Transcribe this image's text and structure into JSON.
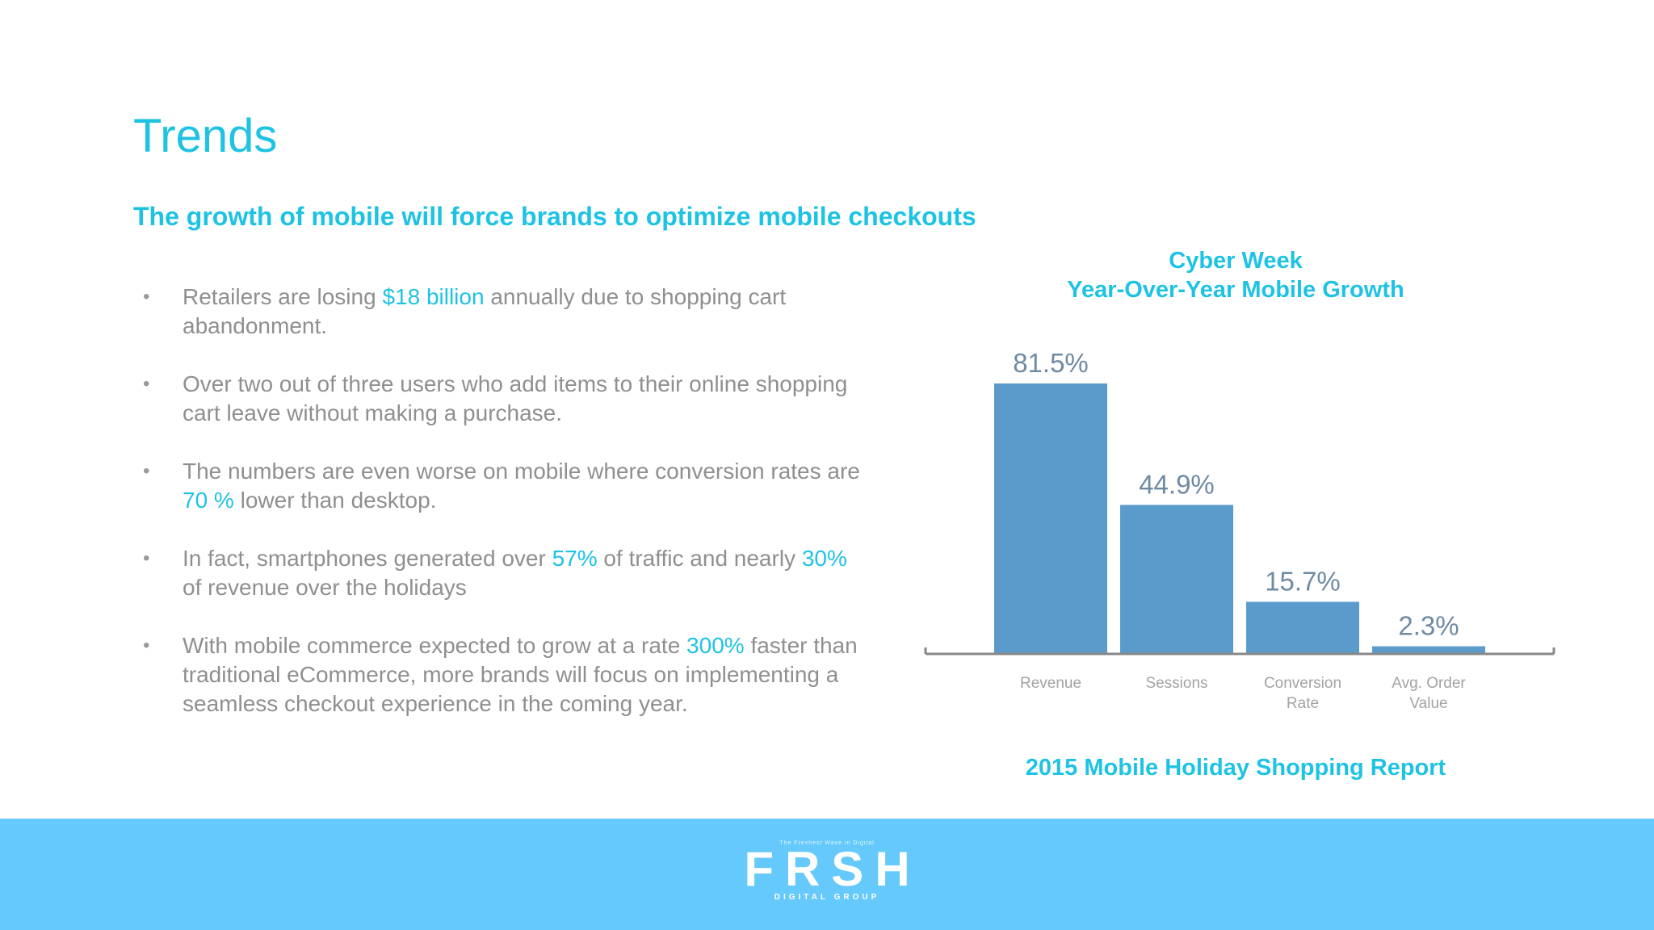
{
  "title": "Trends",
  "subtitle": "The growth of mobile will force brands to optimize mobile checkouts",
  "bullets": [
    {
      "segments": [
        {
          "text": "Retailers are losing ",
          "highlight": false
        },
        {
          "text": "$18 billion",
          "highlight": true
        },
        {
          "text": " annually due to shopping cart abandonment.",
          "highlight": false
        }
      ]
    },
    {
      "segments": [
        {
          "text": "Over two out of three users who add items to their online shopping cart leave without making a purchase.",
          "highlight": false
        }
      ]
    },
    {
      "segments": [
        {
          "text": "The numbers are even worse on mobile where conversion rates are ",
          "highlight": false
        },
        {
          "text": "70 %",
          "highlight": true
        },
        {
          "text": " lower than desktop.",
          "highlight": false
        }
      ]
    },
    {
      "segments": [
        {
          "text": "In fact, smartphones generated over ",
          "highlight": false
        },
        {
          "text": "57%",
          "highlight": true
        },
        {
          "text": " of traffic and nearly ",
          "highlight": false
        },
        {
          "text": "30%",
          "highlight": true
        },
        {
          "text": " of revenue over the holidays",
          "highlight": false
        }
      ]
    },
    {
      "segments": [
        {
          "text": "With mobile commerce expected to grow at a rate ",
          "highlight": false
        },
        {
          "text": "300%",
          "highlight": true
        },
        {
          "text": " faster than traditional eCommerce, more brands will focus on implementing a seamless checkout experience in the coming year.",
          "highlight": false
        }
      ]
    }
  ],
  "bullet_glyph": "•",
  "chart_data": {
    "type": "bar",
    "title_lines": [
      "Cyber Week",
      "Year-Over-Year Mobile Growth"
    ],
    "categories": [
      [
        "Revenue"
      ],
      [
        "Sessions"
      ],
      [
        "Conversion",
        "Rate"
      ],
      [
        "Avg. Order",
        "Value"
      ]
    ],
    "values": [
      81.5,
      44.9,
      15.7,
      2.3
    ],
    "value_labels": [
      "81.5%",
      "44.9%",
      "15.7%",
      "2.3%"
    ],
    "ylim": [
      0,
      81.5
    ],
    "grid": false,
    "bar_color": "#5b9bcc"
  },
  "report_caption": "2015 Mobile Holiday Shopping Report",
  "footer": {
    "tagline": "The Freshest Wave in Digital",
    "logo": "FRSH",
    "logo_sub": "DIGITAL GROUP",
    "background": "#66c9fb"
  },
  "colors": {
    "accent": "#1ec3e4",
    "body_text": "#8f8f8f"
  }
}
